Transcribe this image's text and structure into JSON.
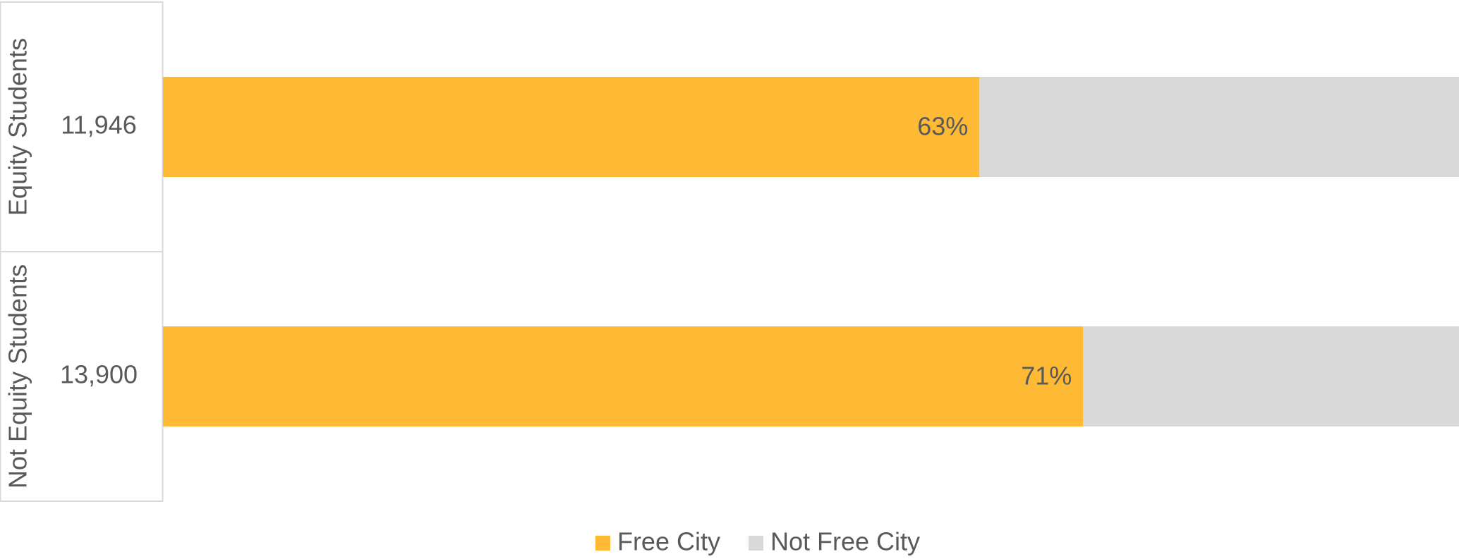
{
  "chart_data": {
    "type": "stacked-bar-100",
    "orientation": "horizontal",
    "categories": [
      "Equity Students",
      "Not Equity Students"
    ],
    "group_totals": [
      "11,946",
      "13,900"
    ],
    "series": [
      {
        "name": "Free City",
        "color": "#ffba35",
        "values": [
          63,
          71
        ],
        "value_labels": [
          "63%",
          "71%"
        ]
      },
      {
        "name": "Not Free City",
        "color": "#d9d9d9",
        "values": [
          37,
          29
        ]
      }
    ],
    "xlim": [
      0,
      100
    ],
    "legend": "bottom"
  }
}
